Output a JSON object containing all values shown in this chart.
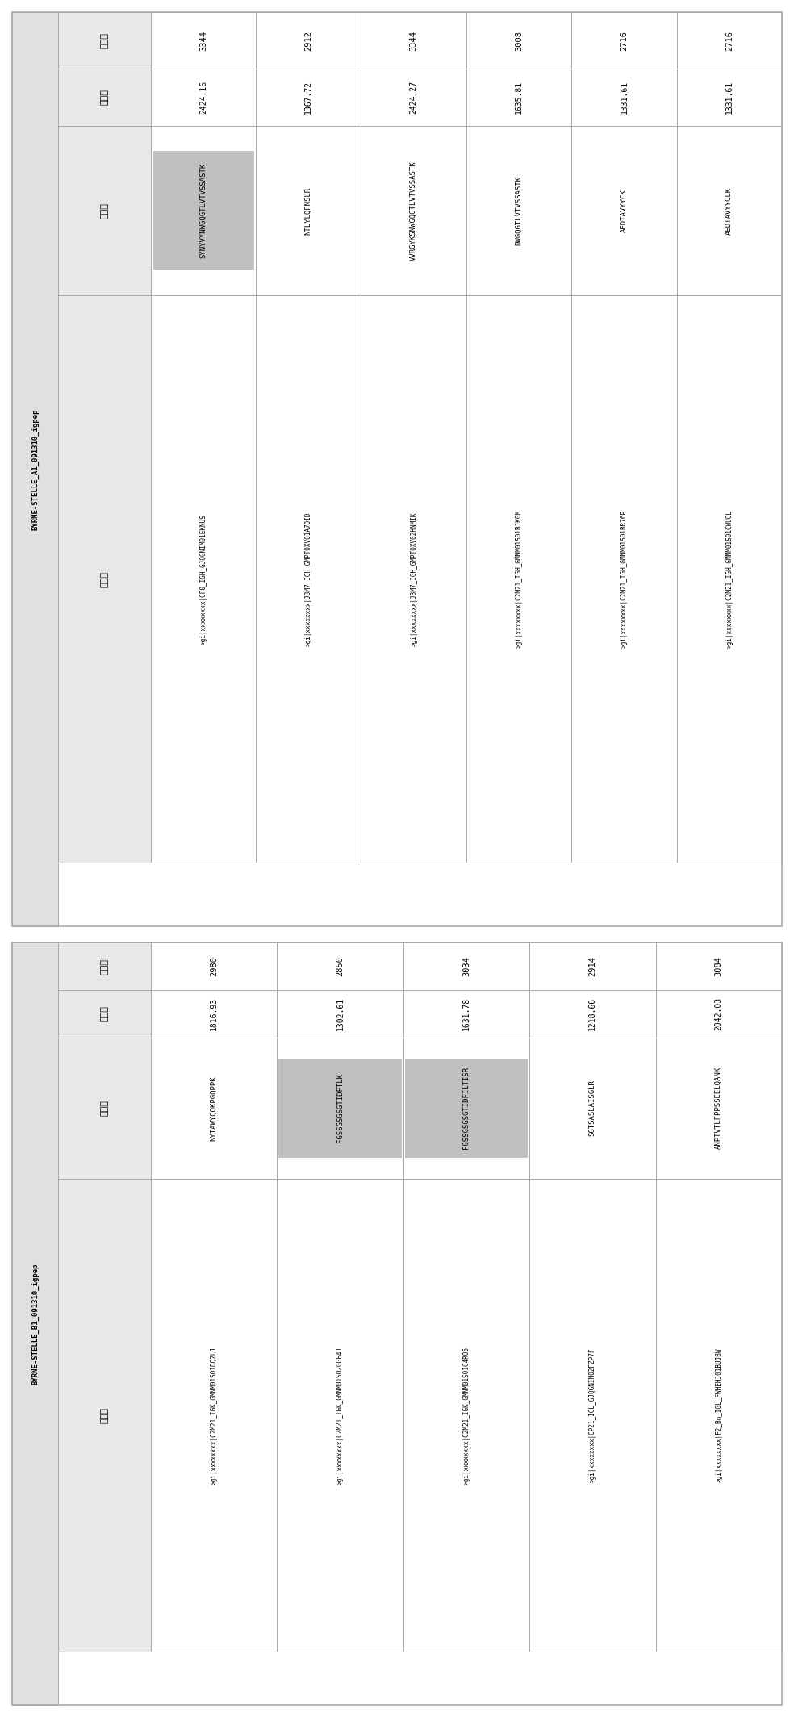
{
  "panel_a": {
    "title": "BYRNE-STELLE_A1_091310_igpep",
    "col_headers": [
      "扫描号",
      "肽质量",
      "肽序列",
      "序列头"
    ],
    "rows": [
      {
        "scan": "3344",
        "mass": "2424.16",
        "peptide": "SYNYVYNWGQGTLVTVSSASTK",
        "seq_header": ">gi|xxxxxxxx|CP0_IGH_GJQGNIM01EKNUS",
        "highlight": true
      },
      {
        "scan": "2912",
        "mass": "1367.72",
        "peptide": "NTLYLQFNSLR",
        "seq_header": ">gi|xxxxxxxx|J3M7_IGH_GMPTOXV01A70ID",
        "highlight": false
      },
      {
        "scan": "3344",
        "mass": "2424.27",
        "peptide": "VVRGYKSNWGQGTLVTVSSASTK",
        "seq_header": ">gi|xxxxxxxx|J3M7_IGH_GMPTOXV02HNMIK",
        "highlight": false
      },
      {
        "scan": "3008",
        "mass": "1635.81",
        "peptide": "DWGQGTLVTVSSASTK",
        "seq_header": ">gi|xxxxxxxx|C2M21_IGH_GMNM01S01BJK0M",
        "highlight": false
      },
      {
        "scan": "2716",
        "mass": "1331.61",
        "peptide": "AEDTAVYYCK",
        "seq_header": ">gi|xxxxxxxx|C2M21_IGH_GMNM01S01BR76P",
        "highlight": false
      },
      {
        "scan": "2716",
        "mass": "1331.61",
        "peptide": "AEDTAVYYCLK",
        "seq_header": ">gi|xxxxxxxx|C2M21_IGH_GMNM01S01CWUOL",
        "highlight": false
      }
    ]
  },
  "panel_b": {
    "title": "BYRNE-STELLE_B1_091310_igpep",
    "col_headers": [
      "扫描号",
      "肽质量",
      "肽序列",
      "序列头"
    ],
    "rows": [
      {
        "scan": "2980",
        "mass": "1816.93",
        "peptide": "NYIAWYQQKPGQPPK",
        "seq_header": ">gi|xxxxxxxx|C2M21_IGK_GMNM01S01DQ2LJ",
        "highlight": false
      },
      {
        "scan": "2850",
        "mass": "1302.61",
        "peptide": "FGSSGSGSGTIDFTLK",
        "seq_header": ">gi|xxxxxxxx|C2M21_IGK_GMNM01S02GGF4J",
        "highlight": true
      },
      {
        "scan": "3034",
        "mass": "1631.78",
        "peptide": "FGSSGSGSGTIDFILTISR",
        "seq_header": ">gi|xxxxxxxx|C2M21_IGK_GMNM01S01C4RO5",
        "highlight": true
      },
      {
        "scan": "2914",
        "mass": "1218.66",
        "peptide": "SGTSASLAISGLR",
        "seq_header": ">gi|xxxxxxxx|CP21_IGL_GJQGNIM02FZP7F",
        "highlight": false
      },
      {
        "scan": "3084",
        "mass": "2042.03",
        "peptide": "ANPTVTLFPPSSEELQANK",
        "seq_header": ">gi|xxxxxxxx|F2_Bn_IGL_FWHEHJ01BUJBW",
        "highlight": false
      }
    ]
  },
  "bg_color": "#ffffff",
  "border_color": "#aaaaaa",
  "header_bg": "#e8e8e8",
  "title_bg": "#e0e0e0",
  "highlight_color": "#c0c0c0",
  "cell_bg": "#ffffff"
}
